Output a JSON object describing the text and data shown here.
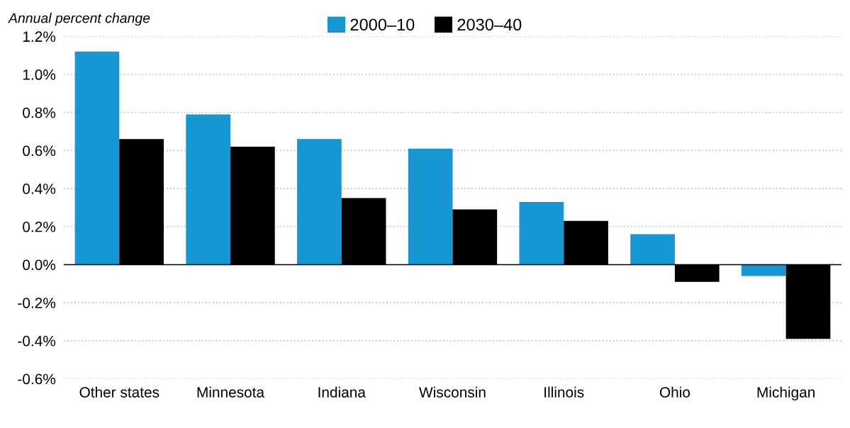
{
  "chart_data": {
    "type": "bar",
    "ylabel": "Annual percent change",
    "categories": [
      "Other states",
      "Minnesota",
      "Indiana",
      "Wisconsin",
      "Illinois",
      "Ohio",
      "Michigan"
    ],
    "series": [
      {
        "name": "2000–10",
        "color": "#1696d2",
        "values": [
          1.12,
          0.79,
          0.66,
          0.61,
          0.33,
          0.16,
          -0.06
        ]
      },
      {
        "name": "2030–40",
        "color": "#000000",
        "values": [
          0.66,
          0.62,
          0.35,
          0.29,
          0.23,
          -0.09,
          -0.39
        ]
      }
    ],
    "ylim": [
      -0.6,
      1.2
    ],
    "yticks": [
      {
        "value": -0.6,
        "label": "-0.6%"
      },
      {
        "value": -0.4,
        "label": "-0.4%"
      },
      {
        "value": -0.2,
        "label": "-0.2%"
      },
      {
        "value": 0,
        "label": "0.0%"
      },
      {
        "value": 0.2,
        "label": "0.2%"
      },
      {
        "value": 0.4,
        "label": "0.4%"
      },
      {
        "value": 0.6,
        "label": "0.6%"
      },
      {
        "value": 0.8,
        "label": "0.8%"
      },
      {
        "value": 1.0,
        "label": "1.0%"
      },
      {
        "value": 1.2,
        "label": "1.2%"
      }
    ],
    "ref_lines": [
      {
        "axis": "y",
        "value": 0,
        "color": "#000000"
      }
    ],
    "grid": "y",
    "legend": "top"
  }
}
